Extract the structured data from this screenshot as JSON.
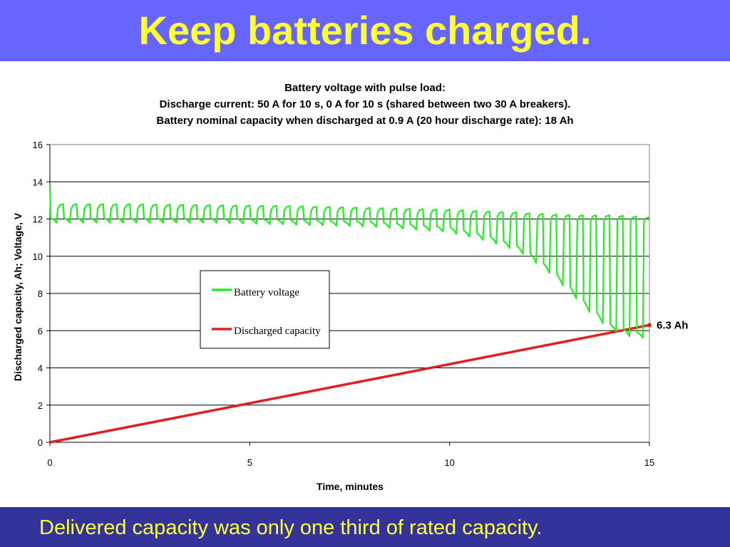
{
  "slide": {
    "title": "Keep batteries charged.",
    "footer": "Delivered capacity was only one third of rated capacity."
  },
  "colors": {
    "header_bg": "#6666ff",
    "footer_bg": "#333399",
    "title_text": "#ffff33",
    "voltage_series": "#22ee22",
    "capacity_series": "#e02020"
  },
  "chart_data": {
    "type": "line",
    "title_lines": [
      "Battery voltage with pulse load:",
      "Discharge current: 50 A for 10 s, 0 A for 10 s  (shared between two 30 A breakers).",
      "Battery nominal capacity when discharged at 0.9 A (20 hour discharge rate): 18 Ah"
    ],
    "xlabel": "Time, minutes",
    "ylabel": "Discharged capacity, Ah;  Voltage, V",
    "xlim": [
      0,
      15
    ],
    "ylim": [
      0,
      16
    ],
    "xticks": [
      "0",
      "5",
      "10",
      "15"
    ],
    "yticks": [
      "0",
      "2",
      "4",
      "6",
      "8",
      "10",
      "12",
      "14",
      "16"
    ],
    "grid": "horizontal",
    "legend": {
      "position": "center-left",
      "entries": [
        "Battery voltage",
        "Discharged capacity"
      ]
    },
    "pulse_period_s": 20,
    "series": [
      {
        "name": "Battery voltage",
        "description": "pulsed: rest voltage (top) and loaded voltage (bottom) per cycle",
        "initial_v": 13.8,
        "x": [
          0.33,
          2,
          4,
          6,
          8,
          10,
          11,
          11.7,
          12,
          12.5,
          13,
          13.5,
          14,
          14.5,
          14.9
        ],
        "rest_v": [
          12.8,
          12.8,
          12.75,
          12.7,
          12.6,
          12.5,
          12.4,
          12.35,
          12.3,
          12.25,
          12.2,
          12.2,
          12.2,
          12.15,
          12.1
        ],
        "loaded_v": [
          11.8,
          11.8,
          11.8,
          11.7,
          11.6,
          11.3,
          10.8,
          10.3,
          9.9,
          9.1,
          8.1,
          7.0,
          6.1,
          5.7,
          5.6
        ]
      },
      {
        "name": "Discharged capacity",
        "x": [
          0,
          15
        ],
        "y": [
          0,
          6.3
        ],
        "end_annotation": "6.3 Ah"
      }
    ]
  }
}
